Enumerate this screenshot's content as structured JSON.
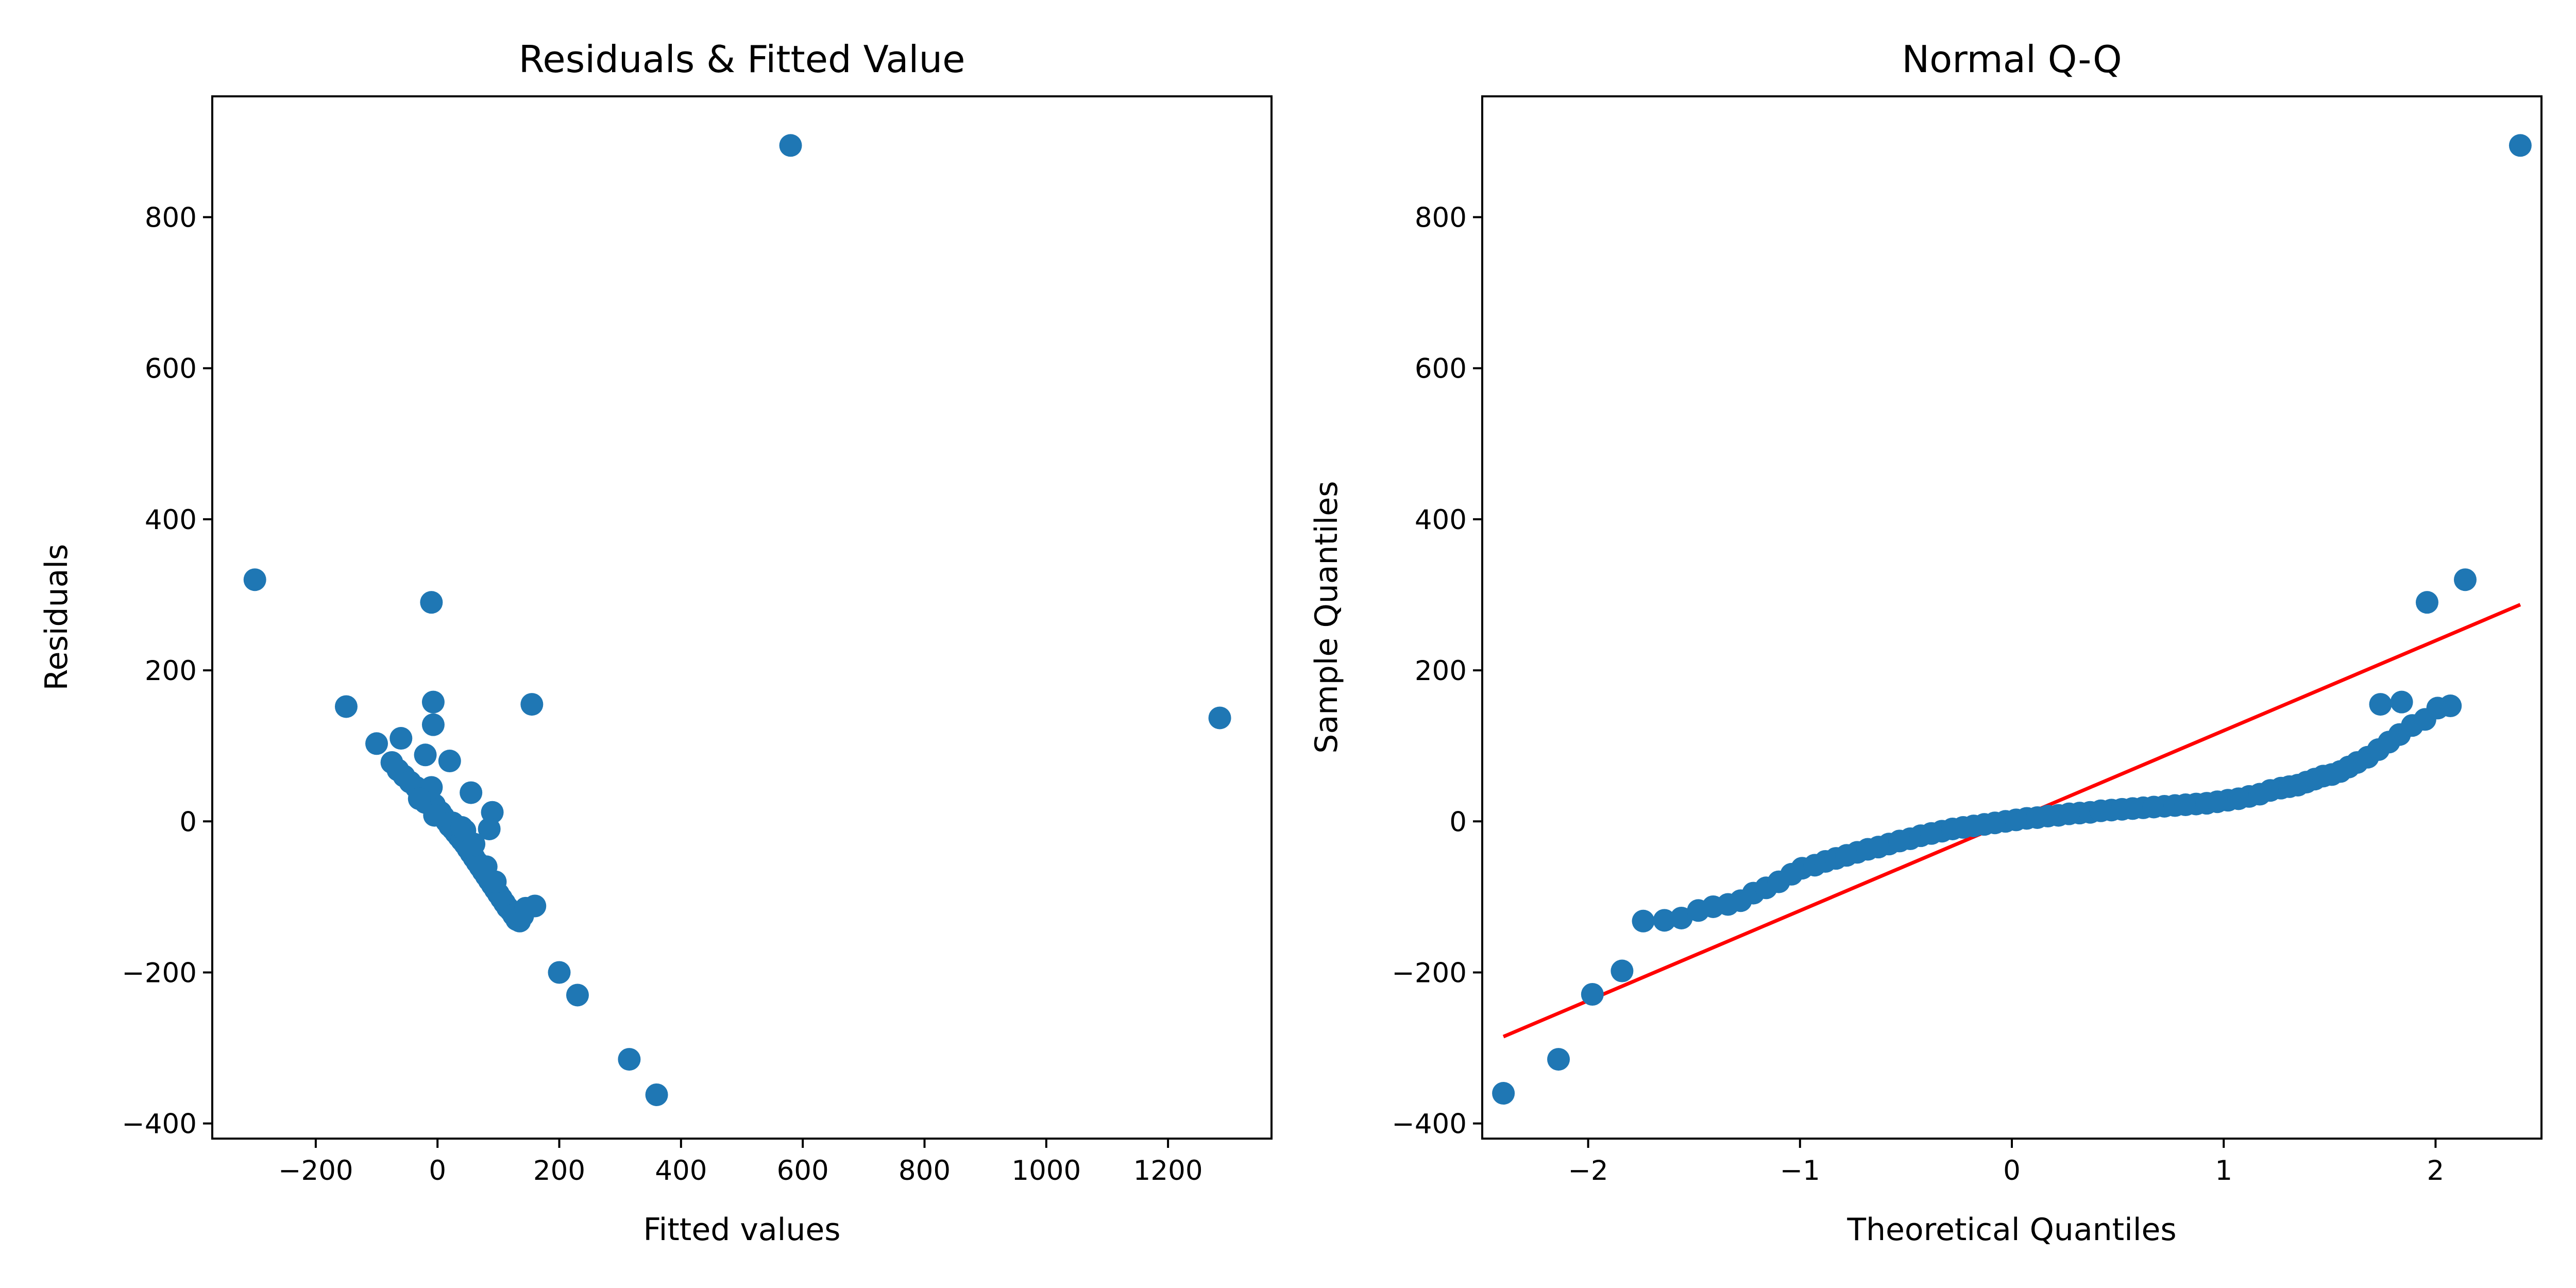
{
  "chart_data": [
    {
      "type": "scatter",
      "title": "Residuals & Fitted Value",
      "xlabel": "Fitted values",
      "ylabel": "Residuals",
      "xlim": [
        -370,
        1370
      ],
      "ylim": [
        -420,
        960
      ],
      "xticks": [
        -200,
        0,
        200,
        400,
        600,
        800,
        1000,
        1200
      ],
      "yticks": [
        -400,
        -200,
        0,
        200,
        400,
        600,
        800
      ],
      "xtick_labels": [
        "−200",
        "0",
        "200",
        "400",
        "600",
        "800",
        "1000",
        "1200"
      ],
      "ytick_labels": [
        "−400",
        "−200",
        "0",
        "200",
        "400",
        "600",
        "800"
      ],
      "grid": false,
      "marker_color": "#1f77b4",
      "series": [
        {
          "points": [
            [
              -300,
              320
            ],
            [
              -150,
              152
            ],
            [
              -100,
              103
            ],
            [
              -60,
              110
            ],
            [
              -75,
              78
            ],
            [
              -65,
              68
            ],
            [
              -55,
              60
            ],
            [
              -45,
              52
            ],
            [
              -35,
              45
            ],
            [
              -25,
              38
            ],
            [
              -15,
              30
            ],
            [
              -5,
              22
            ],
            [
              5,
              12
            ],
            [
              10,
              6
            ],
            [
              15,
              0
            ],
            [
              20,
              -6
            ],
            [
              25,
              -10
            ],
            [
              30,
              -15
            ],
            [
              35,
              -20
            ],
            [
              40,
              -25
            ],
            [
              45,
              -30
            ],
            [
              50,
              -36
            ],
            [
              55,
              -42
            ],
            [
              60,
              -48
            ],
            [
              65,
              -54
            ],
            [
              70,
              -60
            ],
            [
              75,
              -66
            ],
            [
              80,
              -72
            ],
            [
              85,
              -78
            ],
            [
              90,
              -84
            ],
            [
              95,
              -90
            ],
            [
              100,
              -96
            ],
            [
              105,
              -102
            ],
            [
              110,
              -108
            ],
            [
              115,
              -114
            ],
            [
              120,
              -118
            ],
            [
              125,
              -124
            ],
            [
              130,
              -130
            ],
            [
              135,
              -132
            ],
            [
              140,
              -125
            ],
            [
              145,
              -115
            ],
            [
              160,
              -112
            ],
            [
              -10,
              290
            ],
            [
              -7,
              158
            ],
            [
              -7,
              128
            ],
            [
              -20,
              88
            ],
            [
              20,
              80
            ],
            [
              55,
              38
            ],
            [
              90,
              12
            ],
            [
              85,
              -10
            ],
            [
              -10,
              45
            ],
            [
              -20,
              25
            ],
            [
              0,
              15
            ],
            [
              -5,
              8
            ],
            [
              25,
              -2
            ],
            [
              40,
              -8
            ],
            [
              -30,
              30
            ],
            [
              45,
              -12
            ],
            [
              60,
              -30
            ],
            [
              80,
              -60
            ],
            [
              95,
              -80
            ],
            [
              155,
              155
            ],
            [
              200,
              -200
            ],
            [
              230,
              -230
            ],
            [
              315,
              -315
            ],
            [
              360,
              -362
            ],
            [
              580,
              895
            ],
            [
              1285,
              137
            ]
          ]
        }
      ]
    },
    {
      "type": "scatter",
      "title": "Normal Q-Q",
      "xlabel": "Theoretical Quantiles",
      "ylabel": "Sample Quantiles",
      "xlim": [
        -2.5,
        2.5
      ],
      "ylim": [
        -420,
        960
      ],
      "xticks": [
        -2,
        -1,
        0,
        1,
        2
      ],
      "yticks": [
        -400,
        -200,
        0,
        200,
        400,
        600,
        800
      ],
      "xtick_labels": [
        "−2",
        "−1",
        "0",
        "1",
        "2"
      ],
      "ytick_labels": [
        "−400",
        "−200",
        "0",
        "200",
        "400",
        "600",
        "800"
      ],
      "grid": false,
      "marker_color": "#1f77b4",
      "reference_line": {
        "color": "#ff0000",
        "points": [
          [
            -2.4,
            -285
          ],
          [
            2.4,
            287
          ]
        ]
      },
      "series": [
        {
          "points": [
            [
              -2.4,
              -360
            ],
            [
              -2.14,
              -315
            ],
            [
              -1.98,
              -229
            ],
            [
              -1.84,
              -198
            ],
            [
              -1.74,
              -132
            ],
            [
              -1.64,
              -131
            ],
            [
              -1.56,
              -128
            ],
            [
              -1.48,
              -118
            ],
            [
              -1.41,
              -113
            ],
            [
              -1.34,
              -110
            ],
            [
              -1.28,
              -105
            ],
            [
              -1.22,
              -95
            ],
            [
              -1.16,
              -88
            ],
            [
              -1.1,
              -80
            ],
            [
              -1.04,
              -70
            ],
            [
              -0.99,
              -62
            ],
            [
              -0.93,
              -58
            ],
            [
              -0.88,
              -53
            ],
            [
              -0.83,
              -49
            ],
            [
              -0.78,
              -45
            ],
            [
              -0.73,
              -41
            ],
            [
              -0.68,
              -37
            ],
            [
              -0.63,
              -34
            ],
            [
              -0.58,
              -30
            ],
            [
              -0.53,
              -26
            ],
            [
              -0.48,
              -23
            ],
            [
              -0.43,
              -19
            ],
            [
              -0.38,
              -16
            ],
            [
              -0.33,
              -13
            ],
            [
              -0.28,
              -10
            ],
            [
              -0.23,
              -8
            ],
            [
              -0.18,
              -6
            ],
            [
              -0.13,
              -4
            ],
            [
              -0.08,
              -2
            ],
            [
              -0.03,
              0
            ],
            [
              0.02,
              2
            ],
            [
              0.07,
              4
            ],
            [
              0.12,
              5
            ],
            [
              0.17,
              7
            ],
            [
              0.22,
              8
            ],
            [
              0.27,
              10
            ],
            [
              0.32,
              11
            ],
            [
              0.37,
              12
            ],
            [
              0.42,
              14
            ],
            [
              0.47,
              15
            ],
            [
              0.52,
              16
            ],
            [
              0.57,
              17
            ],
            [
              0.62,
              18
            ],
            [
              0.67,
              19
            ],
            [
              0.72,
              20
            ],
            [
              0.77,
              21
            ],
            [
              0.82,
              22
            ],
            [
              0.87,
              23
            ],
            [
              0.92,
              24
            ],
            [
              0.97,
              26
            ],
            [
              1.02,
              28
            ],
            [
              1.07,
              30
            ],
            [
              1.12,
              33
            ],
            [
              1.17,
              36
            ],
            [
              1.22,
              41
            ],
            [
              1.27,
              44
            ],
            [
              1.31,
              46
            ],
            [
              1.35,
              48
            ],
            [
              1.39,
              52
            ],
            [
              1.43,
              56
            ],
            [
              1.47,
              60
            ],
            [
              1.51,
              62
            ],
            [
              1.55,
              66
            ],
            [
              1.59,
              72
            ],
            [
              1.63,
              78
            ],
            [
              1.68,
              85
            ],
            [
              1.73,
              95
            ],
            [
              1.78,
              105
            ],
            [
              1.83,
              115
            ],
            [
              1.89,
              127
            ],
            [
              1.95,
              135
            ],
            [
              2.01,
              150
            ],
            [
              2.07,
              153
            ],
            [
              1.74,
              155
            ],
            [
              1.84,
              158
            ],
            [
              1.96,
              290
            ],
            [
              2.14,
              320
            ],
            [
              2.4,
              895
            ]
          ]
        }
      ]
    }
  ]
}
